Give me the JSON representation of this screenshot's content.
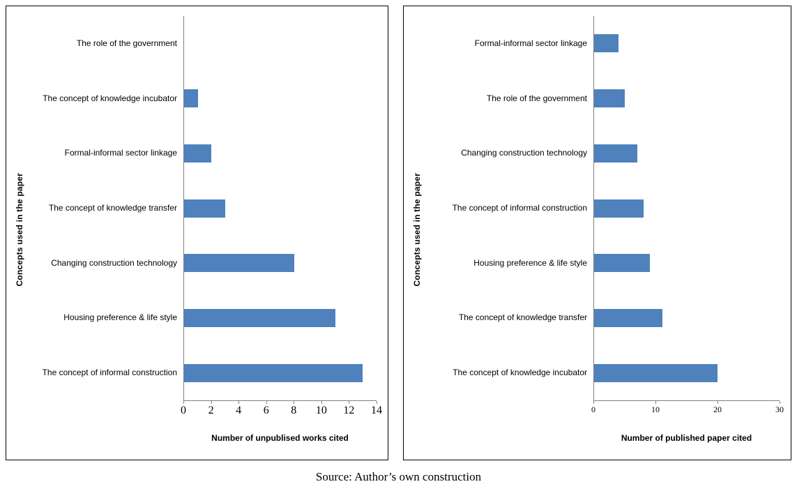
{
  "caption": {
    "text": "Source: Author’s own construction"
  },
  "colors": {
    "bar": "#4F81BD",
    "axis": "#7F7F7F",
    "panel_border": "#000000",
    "background": "#FFFFFF"
  },
  "chart_data": [
    {
      "type": "bar",
      "orientation": "horizontal",
      "title": "",
      "categories": [
        "The role of the government",
        "The concept of knowledge incubator",
        "Formal-informal sector linkage",
        "The concept of knowledge transfer",
        "Changing construction technology",
        "Housing preference & life style",
        "The concept of informal construction"
      ],
      "values": [
        0,
        1,
        2,
        3,
        8,
        11,
        13
      ],
      "xlabel": "Number of unpublised works cited",
      "ylabel": "Concepts used in the paper",
      "xlim": [
        0,
        14
      ],
      "xticks": [
        0,
        2,
        4,
        6,
        8,
        10,
        12,
        14
      ],
      "grid": false,
      "legend": false
    },
    {
      "type": "bar",
      "orientation": "horizontal",
      "title": "",
      "categories": [
        "Formal-informal sector linkage",
        "The role of the government",
        "Changing construction technology",
        "The concept of informal construction",
        "Housing preference & life style",
        "The concept of knowledge transfer",
        "The concept of knowledge incubator"
      ],
      "values": [
        4,
        5,
        7,
        8,
        9,
        11,
        20
      ],
      "xlabel": "Number of published paper cited",
      "ylabel": "Concepts used in the paper",
      "xlim": [
        0,
        30
      ],
      "xticks": [
        0,
        10,
        20,
        30
      ],
      "grid": false,
      "legend": false
    }
  ]
}
